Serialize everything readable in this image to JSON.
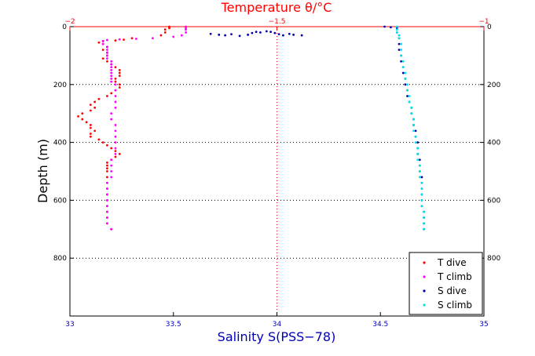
{
  "chart_data": {
    "type": "scatter",
    "title": "",
    "top_axis": {
      "label": "Temperature θ/°C",
      "range": [
        -2,
        -1
      ],
      "ticks": [
        "−2",
        "−1.5",
        "−1"
      ],
      "tick_values": [
        -2,
        -1.5,
        -1
      ],
      "color": "#ff0000"
    },
    "bottom_axis": {
      "label": "Salinity S(PSS−78)",
      "range": [
        33,
        35
      ],
      "ticks": [
        "33",
        "33.5",
        "34",
        "34.5",
        "35"
      ],
      "tick_values": [
        33,
        33.5,
        34,
        34.5,
        35
      ],
      "color": "#0000bb"
    },
    "y_axis": {
      "label": "Depth (m)",
      "range": [
        0,
        1000
      ],
      "reversed": true,
      "ticks": [
        "0",
        "200",
        "400",
        "600",
        "800"
      ],
      "tick_values": [
        0,
        200,
        400,
        600,
        800
      ],
      "right_ticks": true
    },
    "grid": "dotted",
    "legend_position": "bottom-right",
    "series": [
      {
        "name": "T dive",
        "axis": "top",
        "color": "#ff0000",
        "points": [
          [
            -1.76,
            0
          ],
          [
            -1.76,
            5
          ],
          [
            -1.77,
            10
          ],
          [
            -1.77,
            20
          ],
          [
            -1.78,
            30
          ],
          [
            -1.85,
            40
          ],
          [
            -1.87,
            45
          ],
          [
            -1.89,
            48
          ],
          [
            -1.92,
            50
          ],
          [
            -1.93,
            55
          ],
          [
            -1.92,
            60
          ],
          [
            -1.91,
            70
          ],
          [
            -1.92,
            80
          ],
          [
            -1.91,
            90
          ],
          [
            -1.91,
            100
          ],
          [
            -1.92,
            110
          ],
          [
            -1.91,
            120
          ],
          [
            -1.9,
            130
          ],
          [
            -1.89,
            140
          ],
          [
            -1.88,
            150
          ],
          [
            -1.88,
            160
          ],
          [
            -1.88,
            170
          ],
          [
            -1.89,
            180
          ],
          [
            -1.89,
            190
          ],
          [
            -1.88,
            200
          ],
          [
            -1.88,
            210
          ],
          [
            -1.89,
            220
          ],
          [
            -1.9,
            230
          ],
          [
            -1.91,
            240
          ],
          [
            -1.93,
            250
          ],
          [
            -1.94,
            260
          ],
          [
            -1.95,
            270
          ],
          [
            -1.94,
            280
          ],
          [
            -1.95,
            290
          ],
          [
            -1.97,
            300
          ],
          [
            -1.98,
            310
          ],
          [
            -1.97,
            320
          ],
          [
            -1.96,
            330
          ],
          [
            -1.95,
            340
          ],
          [
            -1.95,
            350
          ],
          [
            -1.94,
            360
          ],
          [
            -1.95,
            370
          ],
          [
            -1.95,
            380
          ],
          [
            -1.93,
            390
          ],
          [
            -1.92,
            400
          ],
          [
            -1.91,
            410
          ],
          [
            -1.9,
            420
          ],
          [
            -1.89,
            430
          ],
          [
            -1.88,
            440
          ],
          [
            -1.89,
            450
          ],
          [
            -1.9,
            460
          ],
          [
            -1.91,
            470
          ],
          [
            -1.91,
            480
          ],
          [
            -1.91,
            490
          ],
          [
            -1.91,
            500
          ],
          [
            -1.91,
            520
          ],
          [
            -1.91,
            540
          ],
          [
            -1.91,
            560
          ],
          [
            -1.91,
            580
          ],
          [
            -1.91,
            600
          ],
          [
            -1.91,
            620
          ],
          [
            -1.91,
            640
          ],
          [
            -1.91,
            660
          ],
          [
            -1.91,
            680
          ],
          [
            -1.9,
            700
          ]
        ]
      },
      {
        "name": "T climb",
        "axis": "top",
        "color": "#ff00ff",
        "points": [
          [
            -1.72,
            0
          ],
          [
            -1.72,
            5
          ],
          [
            -1.72,
            10
          ],
          [
            -1.72,
            20
          ],
          [
            -1.73,
            30
          ],
          [
            -1.75,
            35
          ],
          [
            -1.8,
            40
          ],
          [
            -1.84,
            42
          ],
          [
            -1.88,
            44
          ],
          [
            -1.91,
            46
          ],
          [
            -1.92,
            50
          ],
          [
            -1.92,
            60
          ],
          [
            -1.91,
            70
          ],
          [
            -1.91,
            80
          ],
          [
            -1.91,
            90
          ],
          [
            -1.91,
            100
          ],
          [
            -1.91,
            110
          ],
          [
            -1.9,
            120
          ],
          [
            -1.9,
            130
          ],
          [
            -1.9,
            140
          ],
          [
            -1.9,
            150
          ],
          [
            -1.9,
            160
          ],
          [
            -1.9,
            170
          ],
          [
            -1.9,
            180
          ],
          [
            -1.9,
            190
          ],
          [
            -1.89,
            200
          ],
          [
            -1.89,
            220
          ],
          [
            -1.89,
            240
          ],
          [
            -1.89,
            260
          ],
          [
            -1.89,
            280
          ],
          [
            -1.9,
            300
          ],
          [
            -1.9,
            320
          ],
          [
            -1.89,
            340
          ],
          [
            -1.89,
            360
          ],
          [
            -1.89,
            380
          ],
          [
            -1.89,
            400
          ],
          [
            -1.89,
            420
          ],
          [
            -1.89,
            440
          ],
          [
            -1.9,
            460
          ],
          [
            -1.9,
            480
          ],
          [
            -1.9,
            500
          ],
          [
            -1.9,
            520
          ],
          [
            -1.91,
            540
          ],
          [
            -1.91,
            560
          ],
          [
            -1.91,
            580
          ],
          [
            -1.91,
            600
          ],
          [
            -1.91,
            620
          ],
          [
            -1.91,
            640
          ],
          [
            -1.91,
            660
          ],
          [
            -1.91,
            680
          ],
          [
            -1.9,
            700
          ]
        ]
      },
      {
        "name": "S dive",
        "axis": "bottom",
        "color": "#0000aa",
        "points": [
          [
            33.68,
            25
          ],
          [
            33.72,
            28
          ],
          [
            33.75,
            30
          ],
          [
            33.78,
            26
          ],
          [
            33.82,
            32
          ],
          [
            33.86,
            28
          ],
          [
            33.88,
            22
          ],
          [
            33.9,
            18
          ],
          [
            33.92,
            20
          ],
          [
            33.95,
            16
          ],
          [
            33.97,
            18
          ],
          [
            33.99,
            22
          ],
          [
            34.01,
            26
          ],
          [
            34.03,
            30
          ],
          [
            34.06,
            25
          ],
          [
            34.08,
            28
          ],
          [
            34.12,
            30
          ],
          [
            34.52,
            0
          ],
          [
            34.55,
            2
          ],
          [
            34.58,
            5
          ],
          [
            34.58,
            20
          ],
          [
            34.59,
            40
          ],
          [
            34.59,
            60
          ],
          [
            34.59,
            80
          ],
          [
            34.6,
            100
          ],
          [
            34.6,
            120
          ],
          [
            34.61,
            140
          ],
          [
            34.61,
            160
          ],
          [
            34.62,
            180
          ],
          [
            34.62,
            200
          ],
          [
            34.63,
            220
          ],
          [
            34.63,
            240
          ],
          [
            34.64,
            260
          ],
          [
            34.65,
            280
          ],
          [
            34.65,
            300
          ],
          [
            34.66,
            320
          ],
          [
            34.66,
            340
          ],
          [
            34.67,
            360
          ],
          [
            34.67,
            380
          ],
          [
            34.68,
            400
          ],
          [
            34.68,
            420
          ],
          [
            34.68,
            440
          ],
          [
            34.69,
            460
          ],
          [
            34.69,
            480
          ],
          [
            34.69,
            500
          ],
          [
            34.7,
            520
          ],
          [
            34.7,
            540
          ],
          [
            34.7,
            560
          ],
          [
            34.7,
            580
          ],
          [
            34.7,
            600
          ],
          [
            34.7,
            620
          ],
          [
            34.71,
            640
          ],
          [
            34.71,
            660
          ],
          [
            34.71,
            680
          ],
          [
            34.71,
            700
          ]
        ]
      },
      {
        "name": "S climb",
        "axis": "bottom",
        "color": "#00e5e5",
        "points": [
          [
            34.58,
            0
          ],
          [
            34.58,
            10
          ],
          [
            34.58,
            20
          ],
          [
            34.59,
            30
          ],
          [
            34.59,
            40
          ],
          [
            34.6,
            60
          ],
          [
            34.6,
            80
          ],
          [
            34.6,
            100
          ],
          [
            34.61,
            120
          ],
          [
            34.61,
            140
          ],
          [
            34.62,
            160
          ],
          [
            34.62,
            180
          ],
          [
            34.63,
            200
          ],
          [
            34.63,
            220
          ],
          [
            34.64,
            240
          ],
          [
            34.64,
            260
          ],
          [
            34.65,
            280
          ],
          [
            34.65,
            300
          ],
          [
            34.66,
            320
          ],
          [
            34.66,
            340
          ],
          [
            34.66,
            360
          ],
          [
            34.67,
            380
          ],
          [
            34.67,
            400
          ],
          [
            34.68,
            420
          ],
          [
            34.68,
            440
          ],
          [
            34.68,
            460
          ],
          [
            34.69,
            480
          ],
          [
            34.69,
            500
          ],
          [
            34.69,
            520
          ],
          [
            34.7,
            540
          ],
          [
            34.7,
            560
          ],
          [
            34.7,
            580
          ],
          [
            34.7,
            600
          ],
          [
            34.7,
            620
          ],
          [
            34.71,
            640
          ],
          [
            34.71,
            660
          ],
          [
            34.71,
            680
          ],
          [
            34.71,
            700
          ]
        ]
      }
    ]
  }
}
